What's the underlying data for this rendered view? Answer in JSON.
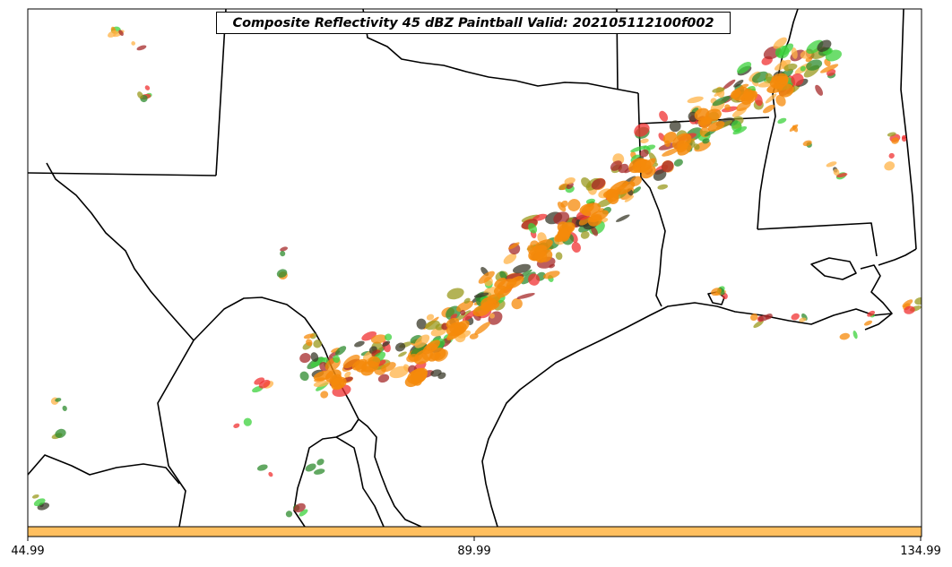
{
  "title": "Composite Reflectivity 45 dBZ Paintball Valid: 202105112100f002",
  "colorbar": {
    "fill_color": "#ffbf5f",
    "ticks": [
      "44.99",
      "89.99",
      "134.99"
    ]
  },
  "palette": {
    "orange": "#f58a0a",
    "light_orange": "#ffb347",
    "red": "#f03232",
    "dark_red": "#a52a2a",
    "green": "#3cd23c",
    "dark_green": "#2e8b2e",
    "olive": "#9a9a1e",
    "dark_gray": "#3a3a2a"
  }
}
